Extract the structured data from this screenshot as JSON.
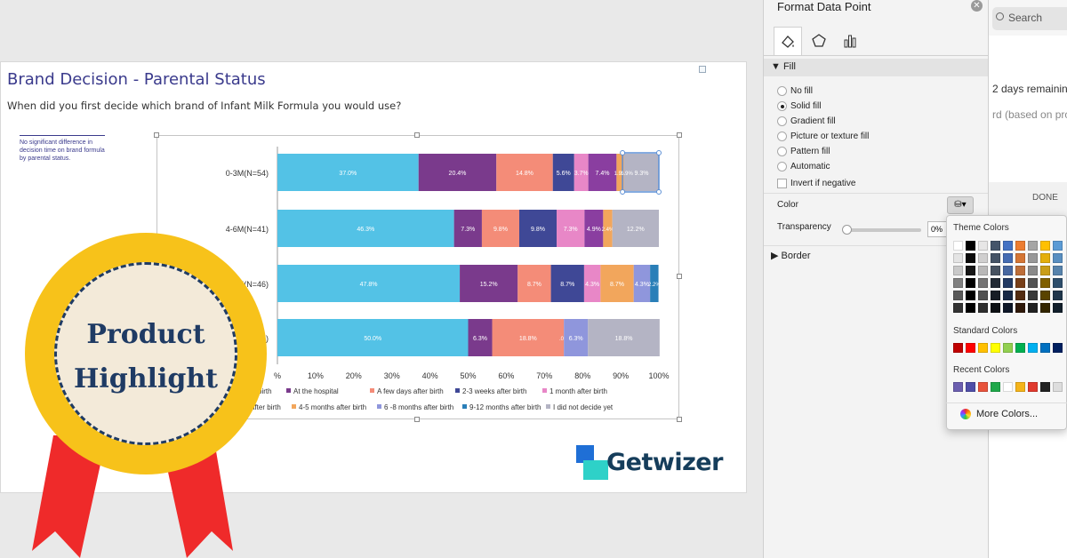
{
  "slide": {
    "title": "Brand Decision - Parental Status",
    "question": "When did you first decide which brand of Infant Milk Formula you would use?",
    "note": "No significant difference in decision time on brand formula by parental status."
  },
  "chart_data": {
    "type": "bar",
    "orientation": "horizontal",
    "stacked": true,
    "categories": [
      "0-3M(N=54)",
      "4-6M(N=41)",
      "M(N=46)",
      "5)"
    ],
    "xlim": [
      0,
      100
    ],
    "x_ticks": [
      "%",
      "10%",
      "20%",
      "30%",
      "40%",
      "50%",
      "60%",
      "70%",
      "80%",
      "90%",
      "100%"
    ],
    "series": [
      {
        "name": "",
        "color": "#53c2e6",
        "values": [
          37.0,
          46.3,
          47.8,
          50.0
        ],
        "labels": [
          "37.0%",
          "46.3%",
          "47.8%",
          "50.0%"
        ]
      },
      {
        "name": "At the hospital",
        "color": "#7a3a8c",
        "values": [
          20.4,
          7.3,
          15.2,
          6.3
        ],
        "labels": [
          "20.4%",
          "7.3%",
          "15.2%",
          "6.3%"
        ]
      },
      {
        "name": "A few days after birth",
        "color": "#f48c78",
        "values": [
          14.8,
          9.8,
          8.7,
          18.8
        ],
        "labels": [
          "14.8%",
          "9.8%",
          "8.7%",
          "18.8%"
        ]
      },
      {
        "name": "2-3 weeks after birth",
        "color": "#3f4896",
        "values": [
          5.6,
          9.8,
          8.7,
          0.0
        ],
        "labels": [
          "5.6%",
          "9.8%",
          "8.7%",
          ".0%"
        ]
      },
      {
        "name": "1 month after birth",
        "color": "#e887c7",
        "values": [
          3.7,
          7.3,
          4.3,
          0.0
        ],
        "labels": [
          "3.7%",
          "7.3%",
          "4.3%",
          ""
        ]
      },
      {
        "name": "",
        "color": "#8a3ea0",
        "values": [
          7.4,
          4.9,
          0.0,
          0.0
        ],
        "labels": [
          "7.4%",
          "4.9%",
          "",
          ""
        ]
      },
      {
        "name": "4-5 months after birth",
        "color": "#f2a65c",
        "values": [
          1.9,
          2.4,
          8.7,
          0.0
        ],
        "labels": [
          "1.9%",
          "2.4%",
          "8.7%",
          ""
        ]
      },
      {
        "name": "6 -8 months after birth",
        "color": "#8f96dc",
        "values": [
          0.0,
          0.0,
          4.3,
          6.3
        ],
        "labels": [
          "",
          "",
          "4.3%",
          "6.3%"
        ]
      },
      {
        "name": "9-12 months after birth",
        "color": "#2a7fb8",
        "values": [
          0.0,
          0.0,
          2.2,
          0.0
        ],
        "labels": [
          "",
          "",
          "2.2%",
          ""
        ]
      },
      {
        "name": "I did not decide yet",
        "color": "#b4b4c4",
        "values": [
          9.3,
          12.2,
          0.0,
          18.8
        ],
        "labels": [
          "9.3%",
          "12.2%",
          "",
          "18.8%"
        ]
      }
    ],
    "extra_labels": [
      "1.9%",
      "2.4%",
      "6.3%"
    ],
    "legend_row1": [
      "birth",
      "At the hospital",
      "A few days after birth",
      "2-3 weeks after birth",
      "1 month after birth"
    ],
    "legend_row2": [
      "after birth",
      "4-5 months after birth",
      "6 -8 months after birth",
      "9-12 months after birth",
      "I did not decide yet"
    ]
  },
  "logo": {
    "text": "Getwizer",
    "colors": {
      "blue": "#1f6fd6",
      "teal": "#2ed1c8"
    }
  },
  "badge": {
    "line1": "Product",
    "line2": "Highlight"
  },
  "panel": {
    "title": "Format Data Point",
    "close_icon": "close-icon",
    "tabs": [
      "fill-line-icon",
      "effects-pentagon-icon",
      "series-options-icon"
    ],
    "fill_section": "Fill",
    "fill_options": [
      "No fill",
      "Solid fill",
      "Gradient fill",
      "Picture or texture fill",
      "Pattern fill",
      "Automatic"
    ],
    "selected_fill": "Solid fill",
    "invert_label": "Invert if negative",
    "color_label": "Color",
    "transparency_label": "Transparency",
    "transparency_value": "0%",
    "border_section": "Border"
  },
  "right_app": {
    "search_placeholder": "Search",
    "trial_text": "2 days remaining",
    "sub_text": "rd (based on pro",
    "done_label": "DONE"
  },
  "color_popup": {
    "theme_label": "Theme Colors",
    "standard_label": "Standard Colors",
    "recent_label": "Recent Colors",
    "more_label": "More Colors...",
    "theme_top": [
      "#ffffff",
      "#000000",
      "#e7e6e6",
      "#44546a",
      "#4472c4",
      "#ed7d31",
      "#a5a5a5",
      "#ffc000",
      "#5b9bd5"
    ],
    "standard": [
      "#c00000",
      "#ff0000",
      "#ffc000",
      "#ffff00",
      "#92d050",
      "#00b050",
      "#00b0f0",
      "#0070c0",
      "#002060"
    ],
    "recent": [
      "#6c5fb0",
      "#4f4ea8",
      "#e8533c",
      "#1fa84a",
      "#ffffff",
      "#f5b41a",
      "#e03a2e",
      "#222222",
      "#dddddd"
    ]
  }
}
